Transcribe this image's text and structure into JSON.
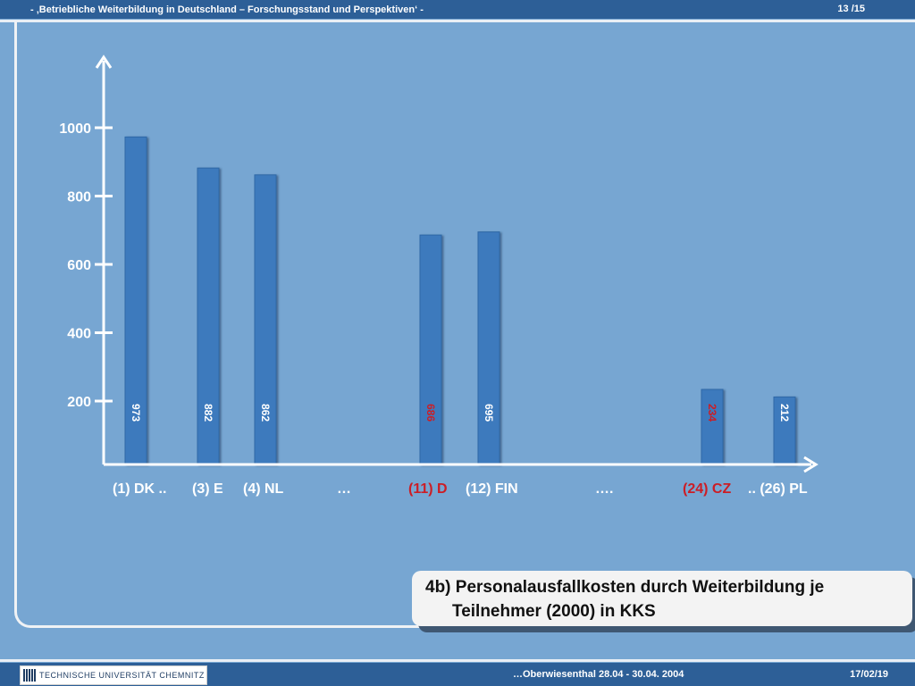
{
  "header": {
    "title": "- ‚Betriebliche Weiterbildung in Deutschland – Forschungsstand und Perspektiven‘ -",
    "page": "13 /15"
  },
  "footer": {
    "logo_text": "TECHNISCHE UNIVERSITÄT CHEMNITZ",
    "event": "…Oberwiesenthal 28.04 - 30.04. 2004",
    "date": "17/02/19"
  },
  "caption": {
    "line1": "4b) Personalausfallkosten durch Weiterbildung  je",
    "line2": "Teilnehmer (2000) in KKS"
  },
  "colors": {
    "bar": "#3c7abd",
    "axis": "#ffffff",
    "highlight": "#cc1d25",
    "label": "#ffffff"
  },
  "chart_data": {
    "type": "bar",
    "ylim": [
      0,
      1000
    ],
    "y_ticks": [
      "200",
      "400",
      "600",
      "800",
      "1000"
    ],
    "categories": [
      {
        "label": "(1) DK ..",
        "value": 973,
        "bar_label": "973",
        "highlight": false
      },
      {
        "label": "(3) E",
        "value": 882,
        "bar_label": "882",
        "highlight": false
      },
      {
        "label": "(4) NL",
        "value": 862,
        "bar_label": "862",
        "highlight": false
      },
      {
        "label": "…",
        "value": null,
        "bar_label": "",
        "highlight": false
      },
      {
        "label": "(11) D",
        "value": 686,
        "bar_label": "686",
        "highlight": true
      },
      {
        "label": "(12) FIN",
        "value": 695,
        "bar_label": "695",
        "highlight": false
      },
      {
        "label": "….",
        "value": null,
        "bar_label": "",
        "highlight": false
      },
      {
        "label": "(24) CZ",
        "value": 234,
        "bar_label": "234",
        "highlight": true
      },
      {
        "label": ".. (26) PL",
        "value": 212,
        "bar_label": "212",
        "highlight": false
      }
    ]
  }
}
